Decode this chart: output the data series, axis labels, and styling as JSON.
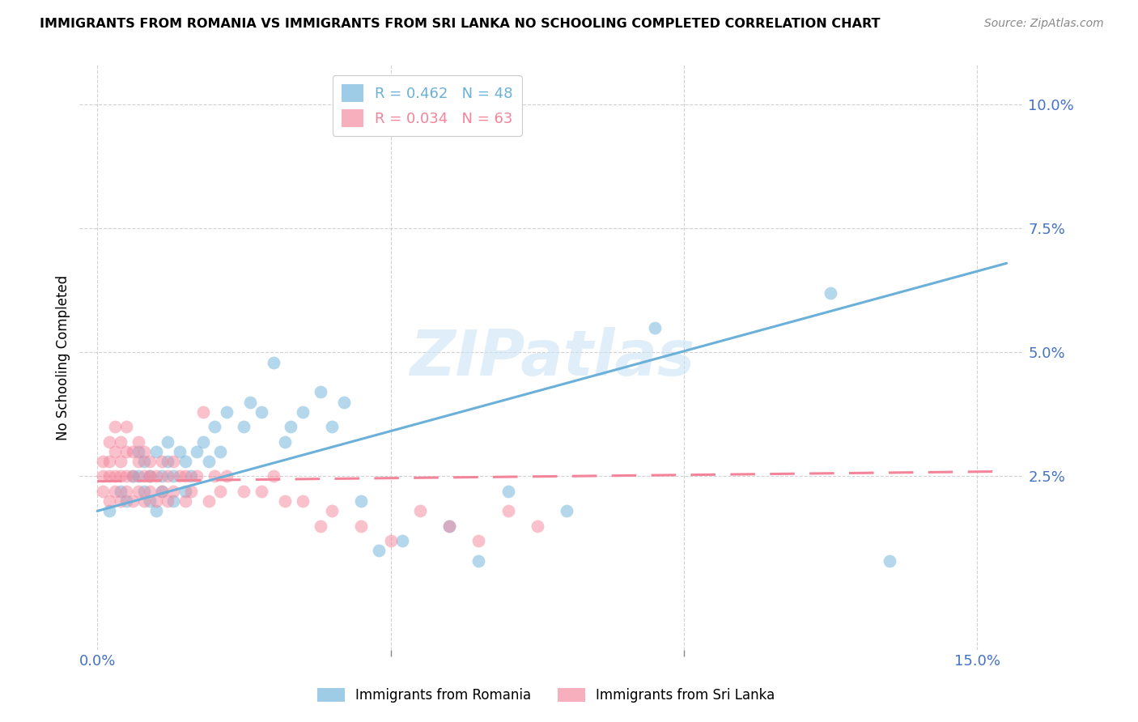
{
  "title": "IMMIGRANTS FROM ROMANIA VS IMMIGRANTS FROM SRI LANKA NO SCHOOLING COMPLETED CORRELATION CHART",
  "source": "Source: ZipAtlas.com",
  "ylabel_label": "No Schooling Completed",
  "ytick_labels": [
    "10.0%",
    "7.5%",
    "5.0%",
    "2.5%"
  ],
  "ytick_values": [
    0.1,
    0.075,
    0.05,
    0.025
  ],
  "xtick_major": [
    0.0,
    0.15
  ],
  "xtick_minor": [
    0.05,
    0.1
  ],
  "xtick_labels": [
    "0.0%",
    "15.0%"
  ],
  "xlim": [
    -0.003,
    0.158
  ],
  "ylim": [
    -0.01,
    0.108
  ],
  "romania_color": "#6ab0d8",
  "srilanka_color": "#f4849a",
  "romania_R": 0.462,
  "romania_N": 48,
  "srilanka_R": 0.034,
  "srilanka_N": 63,
  "watermark": "ZIPatlas",
  "romania_scatter_x": [
    0.002,
    0.004,
    0.005,
    0.006,
    0.007,
    0.007,
    0.008,
    0.008,
    0.009,
    0.009,
    0.01,
    0.01,
    0.011,
    0.011,
    0.012,
    0.012,
    0.013,
    0.013,
    0.014,
    0.015,
    0.015,
    0.016,
    0.017,
    0.018,
    0.019,
    0.02,
    0.021,
    0.022,
    0.025,
    0.026,
    0.028,
    0.03,
    0.032,
    0.033,
    0.035,
    0.038,
    0.04,
    0.042,
    0.045,
    0.048,
    0.052,
    0.06,
    0.065,
    0.07,
    0.08,
    0.095,
    0.125,
    0.135
  ],
  "romania_scatter_y": [
    0.018,
    0.022,
    0.02,
    0.025,
    0.025,
    0.03,
    0.022,
    0.028,
    0.02,
    0.025,
    0.018,
    0.03,
    0.025,
    0.022,
    0.028,
    0.032,
    0.02,
    0.025,
    0.03,
    0.022,
    0.028,
    0.025,
    0.03,
    0.032,
    0.028,
    0.035,
    0.03,
    0.038,
    0.035,
    0.04,
    0.038,
    0.048,
    0.032,
    0.035,
    0.038,
    0.042,
    0.035,
    0.04,
    0.02,
    0.01,
    0.012,
    0.015,
    0.008,
    0.022,
    0.018,
    0.055,
    0.062,
    0.008
  ],
  "srilanka_scatter_x": [
    0.001,
    0.001,
    0.001,
    0.002,
    0.002,
    0.002,
    0.002,
    0.003,
    0.003,
    0.003,
    0.003,
    0.004,
    0.004,
    0.004,
    0.004,
    0.005,
    0.005,
    0.005,
    0.005,
    0.006,
    0.006,
    0.006,
    0.007,
    0.007,
    0.007,
    0.008,
    0.008,
    0.008,
    0.009,
    0.009,
    0.009,
    0.01,
    0.01,
    0.011,
    0.011,
    0.012,
    0.012,
    0.013,
    0.013,
    0.014,
    0.015,
    0.015,
    0.016,
    0.017,
    0.018,
    0.019,
    0.02,
    0.021,
    0.022,
    0.025,
    0.028,
    0.03,
    0.032,
    0.035,
    0.038,
    0.04,
    0.045,
    0.05,
    0.055,
    0.06,
    0.065,
    0.07,
    0.075
  ],
  "srilanka_scatter_y": [
    0.022,
    0.025,
    0.028,
    0.02,
    0.025,
    0.028,
    0.032,
    0.022,
    0.025,
    0.03,
    0.035,
    0.02,
    0.025,
    0.028,
    0.032,
    0.022,
    0.025,
    0.03,
    0.035,
    0.02,
    0.025,
    0.03,
    0.022,
    0.028,
    0.032,
    0.02,
    0.025,
    0.03,
    0.022,
    0.025,
    0.028,
    0.02,
    0.025,
    0.022,
    0.028,
    0.02,
    0.025,
    0.022,
    0.028,
    0.025,
    0.02,
    0.025,
    0.022,
    0.025,
    0.038,
    0.02,
    0.025,
    0.022,
    0.025,
    0.022,
    0.022,
    0.025,
    0.02,
    0.02,
    0.015,
    0.018,
    0.015,
    0.012,
    0.018,
    0.015,
    0.012,
    0.018,
    0.015
  ],
  "romania_line_x": [
    0.0,
    0.155
  ],
  "romania_line_y": [
    0.018,
    0.068
  ],
  "srilanka_line_x": [
    0.0,
    0.155
  ],
  "srilanka_line_y": [
    0.024,
    0.026
  ]
}
